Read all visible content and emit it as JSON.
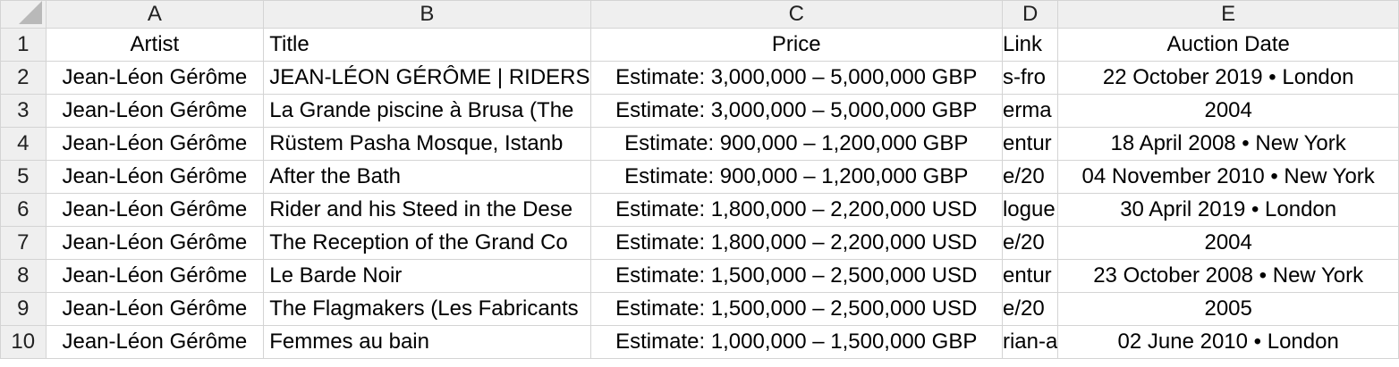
{
  "columns": [
    "A",
    "B",
    "C",
    "D",
    "E"
  ],
  "rows": [
    {
      "num": "1",
      "artist": "Artist",
      "title": "Title",
      "price": "Price",
      "link": "Link",
      "date": "Auction Date"
    },
    {
      "num": "2",
      "artist": "Jean-Léon Gérôme",
      "title": "JEAN-LÉON GÉRÔME | RIDERS",
      "price": "Estimate: 3,000,000 – 5,000,000 GBP",
      "link": "s-fro",
      "date": "22 October 2019 • London"
    },
    {
      "num": "3",
      "artist": "Jean-Léon Gérôme",
      "title": "La Grande piscine à Brusa (The",
      "price": "Estimate: 3,000,000 – 5,000,000 GBP",
      "link": "erma",
      "date": "2004"
    },
    {
      "num": "4",
      "artist": "Jean-Léon Gérôme",
      "title": "Rüstem Pasha Mosque, Istanb",
      "price": "Estimate: 900,000 – 1,200,000 GBP",
      "link": "entur",
      "date": "18 April 2008 • New York"
    },
    {
      "num": "5",
      "artist": "Jean-Léon Gérôme",
      "title": "After the Bath",
      "price": "Estimate: 900,000 – 1,200,000 GBP",
      "link": "e/20",
      "date": "04 November 2010 • New York"
    },
    {
      "num": "6",
      "artist": "Jean-Léon Gérôme",
      "title": "Rider and his Steed in the Dese",
      "price": "Estimate: 1,800,000 – 2,200,000 USD",
      "link": "logue",
      "date": "30 April 2019 • London"
    },
    {
      "num": "7",
      "artist": "Jean-Léon Gérôme",
      "title": "The Reception of the Grand Co",
      "price": "Estimate: 1,800,000 – 2,200,000 USD",
      "link": "e/20",
      "date": "2004"
    },
    {
      "num": "8",
      "artist": "Jean-Léon Gérôme",
      "title": "Le Barde Noir",
      "price": "Estimate: 1,500,000 – 2,500,000 USD",
      "link": "entur",
      "date": "23 October 2008 • New York"
    },
    {
      "num": "9",
      "artist": "Jean-Léon Gérôme",
      "title": "The Flagmakers (Les Fabricants",
      "price": "Estimate: 1,500,000 – 2,500,000 USD",
      "link": "e/20",
      "date": "2005"
    },
    {
      "num": "10",
      "artist": "Jean-Léon Gérôme",
      "title": "Femmes au bain",
      "price": "Estimate: 1,000,000 – 1,500,000 GBP",
      "link": "rian-a",
      "date": "02 June 2010 • London"
    }
  ]
}
